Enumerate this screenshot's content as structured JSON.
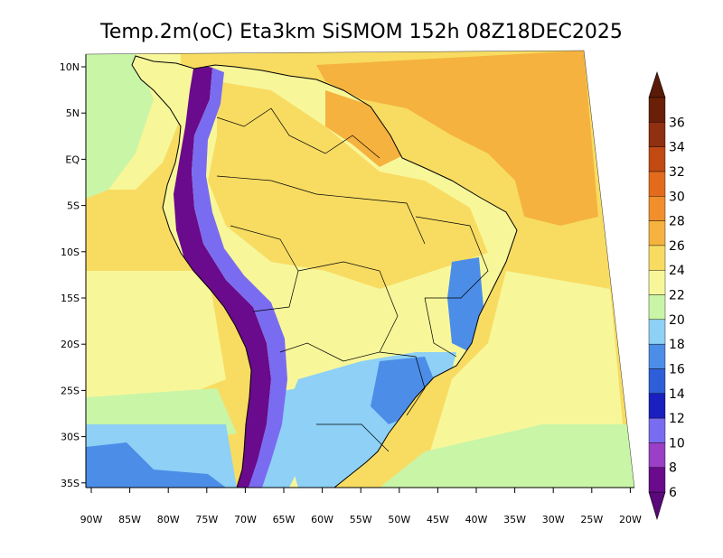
{
  "title": "Temp.2m(oC) Eta3km SiSMOM 152h 08Z18DEC2025",
  "map": {
    "latitude_labels": [
      "10N",
      "5N",
      "EQ",
      "5S",
      "10S",
      "15S",
      "20S",
      "25S",
      "30S",
      "35S"
    ],
    "longitude_labels": [
      "90W",
      "85W",
      "80W",
      "75W",
      "70W",
      "65W",
      "60W",
      "55W",
      "50W",
      "45W",
      "40W",
      "35W",
      "30W",
      "25W",
      "20W"
    ]
  },
  "colorbar": {
    "labels": [
      "6",
      "8",
      "10",
      "12",
      "14",
      "16",
      "18",
      "20",
      "22",
      "24",
      "26",
      "28",
      "30",
      "32",
      "34",
      "36"
    ],
    "colors": [
      "#6a0a8c",
      "#9b3fc6",
      "#7a6cf0",
      "#1a1fbf",
      "#2f5fd8",
      "#4c8de8",
      "#8ed0f6",
      "#c9f5a7",
      "#f7f79a",
      "#f8dc62",
      "#f5b23e",
      "#f08f2c",
      "#e36b1c",
      "#c04a12",
      "#8f3010",
      "#6a2008"
    ],
    "min_color": "#5a087a",
    "max_color": "#5a1a08"
  }
}
